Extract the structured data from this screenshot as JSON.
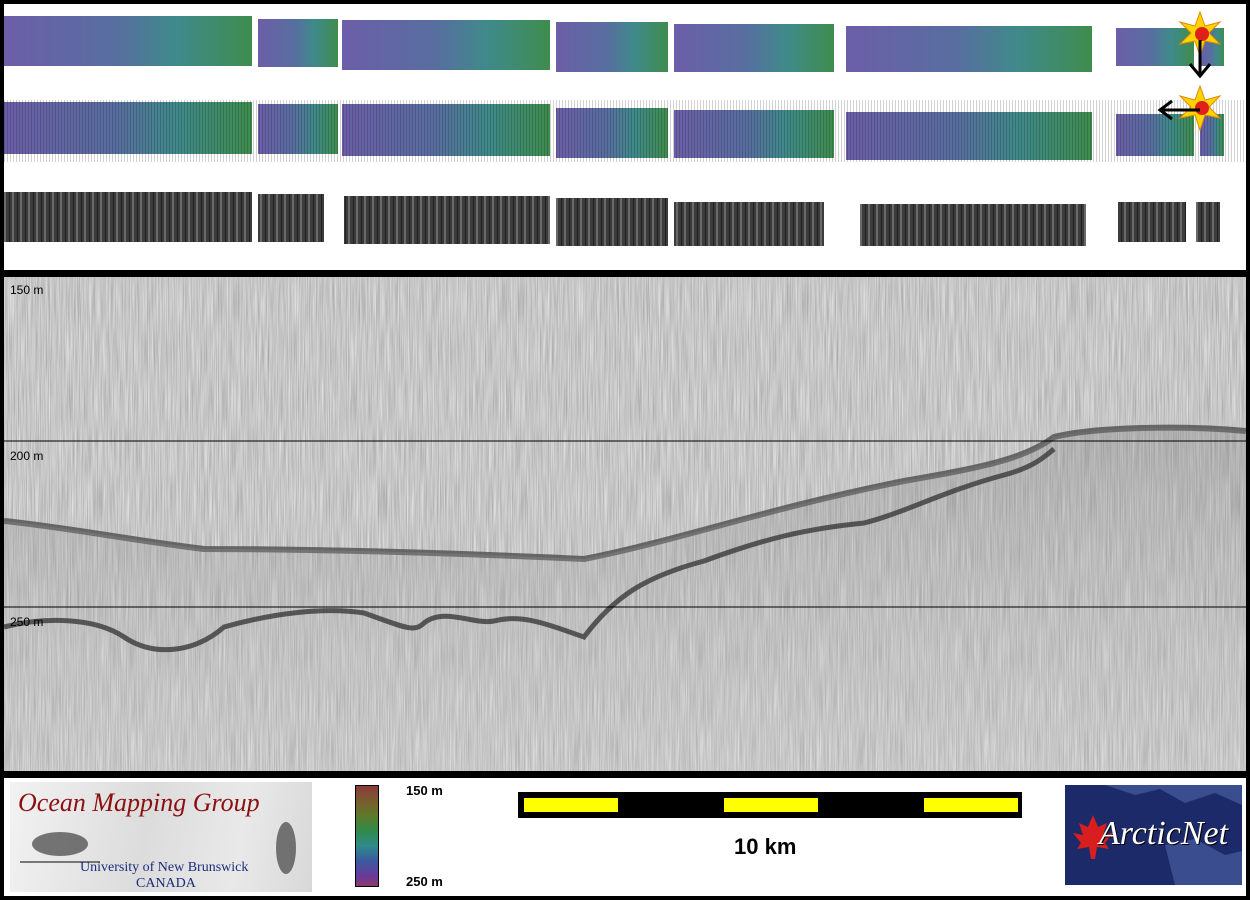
{
  "profile": {
    "depth_labels": [
      "150 m",
      "200 m",
      "250 m"
    ]
  },
  "legend": {
    "colorbar_top": "150 m",
    "colorbar_bottom": "250 m",
    "scale_label": "10 km"
  },
  "logos": {
    "omg_title": "Ocean Mapping Group",
    "omg_line1": "University of New Brunswick",
    "omg_line2": "CANADA",
    "arcticnet_text": "ArcticNet"
  },
  "colors": {
    "swath_start": "#6a5aa6",
    "swath_end": "#3c8a55",
    "backscatter": "#3a3a3a",
    "scale_yellow": "#ffff00",
    "omg_red": "#8b1010",
    "arcticnet_blue": "#1d2a6a"
  },
  "icons": [
    "sun-icon",
    "arrow-down-icon",
    "arrow-left-icon",
    "maple-leaf-icon"
  ]
}
